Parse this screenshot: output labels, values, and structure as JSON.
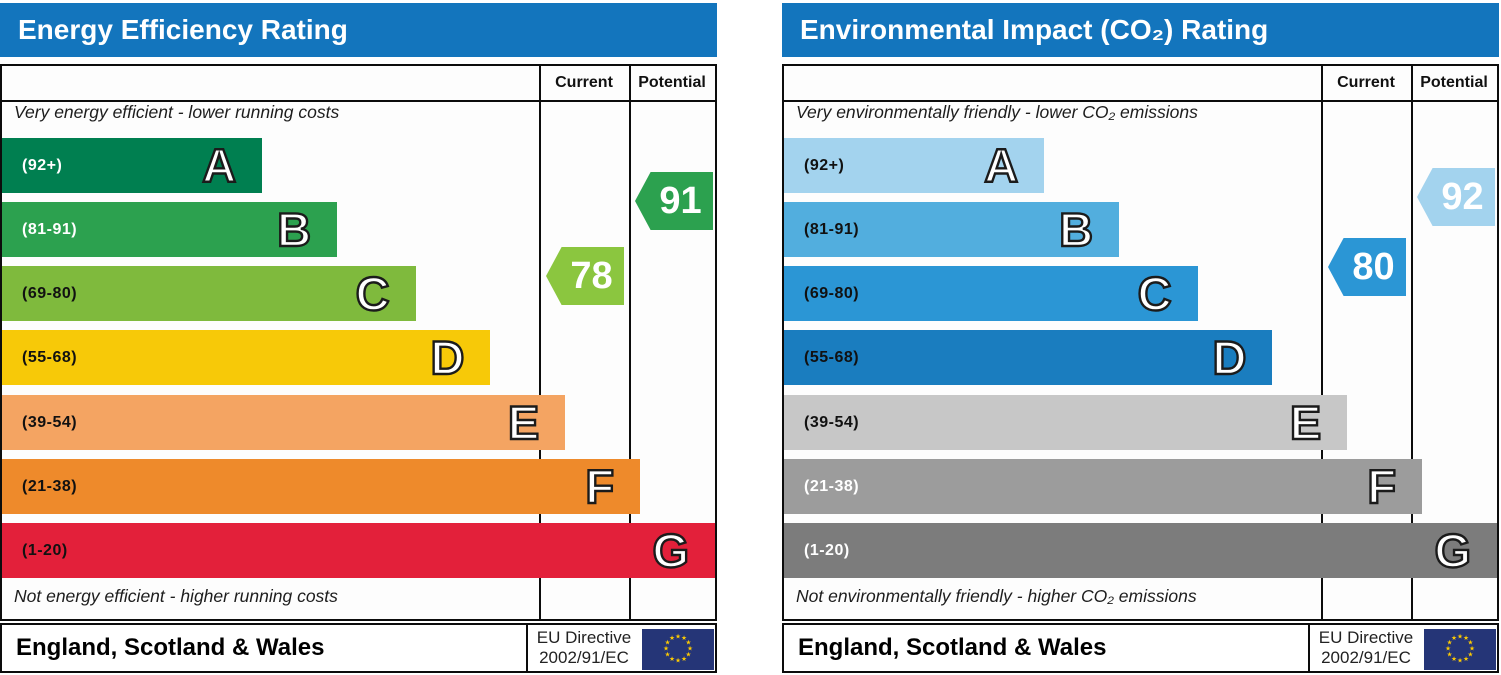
{
  "accent_colors": {
    "header_blue": "#1375bd",
    "border": "#0c0c0c",
    "eu_flag_blue": "#253577",
    "eu_star_yellow": "#ffcc00"
  },
  "panels": [
    {
      "title": "Energy Efficiency Rating",
      "columns": {
        "current": "Current",
        "potential": "Potential"
      },
      "caption_top": "Very energy efficient - lower running costs",
      "caption_bottom": "Not energy efficient - higher running costs",
      "bands": [
        {
          "letter": "A",
          "range": "(92+)",
          "color": "#007f50",
          "text_color": "#ffffff",
          "width_pct": 36.5
        },
        {
          "letter": "B",
          "range": "(81-91)",
          "color": "#2ca14f",
          "text_color": "#ffffff",
          "width_pct": 47
        },
        {
          "letter": "C",
          "range": "(69-80)",
          "color": "#7fba3d",
          "text_color": "#111111",
          "width_pct": 58
        },
        {
          "letter": "D",
          "range": "(55-68)",
          "color": "#f7c908",
          "text_color": "#111111",
          "width_pct": 68.5
        },
        {
          "letter": "E",
          "range": "(39-54)",
          "color": "#f4a462",
          "text_color": "#111111",
          "width_pct": 79
        },
        {
          "letter": "F",
          "range": "(21-38)",
          "color": "#ee8a2b",
          "text_color": "#111111",
          "width_pct": 89.5
        },
        {
          "letter": "G",
          "range": "(1-20)",
          "color": "#e3203a",
          "text_color": "#111111",
          "width_pct": 100
        }
      ],
      "current": {
        "value": "78",
        "band": "C",
        "color": "#8bc63f"
      },
      "potential": {
        "value": "91",
        "band": "B",
        "color": "#2ca14f"
      },
      "footer": {
        "region": "England, Scotland & Wales",
        "directive_line1": "EU Directive",
        "directive_line2": "2002/91/EC"
      }
    },
    {
      "title": "Environmental Impact (CO₂) Rating",
      "columns": {
        "current": "Current",
        "potential": "Potential"
      },
      "caption_top": "Very environmentally friendly - lower CO₂ emissions",
      "caption_bottom": "Not environmentally friendly - higher CO₂ emissions",
      "bands": [
        {
          "letter": "A",
          "range": "(92+)",
          "color": "#a3d3ee",
          "text_color": "#111111",
          "width_pct": 36.5
        },
        {
          "letter": "B",
          "range": "(81-91)",
          "color": "#52aede",
          "text_color": "#111111",
          "width_pct": 47
        },
        {
          "letter": "C",
          "range": "(69-80)",
          "color": "#2b96d5",
          "text_color": "#111111",
          "width_pct": 58
        },
        {
          "letter": "D",
          "range": "(55-68)",
          "color": "#1a7dbf",
          "text_color": "#111111",
          "width_pct": 68.5
        },
        {
          "letter": "E",
          "range": "(39-54)",
          "color": "#c7c7c7",
          "text_color": "#111111",
          "width_pct": 79
        },
        {
          "letter": "F",
          "range": "(21-38)",
          "color": "#9c9c9c",
          "text_color": "#ffffff",
          "width_pct": 89.5
        },
        {
          "letter": "G",
          "range": "(1-20)",
          "color": "#7c7c7c",
          "text_color": "#ffffff",
          "width_pct": 100
        }
      ],
      "current": {
        "value": "80",
        "band": "C",
        "color": "#2b96d5"
      },
      "potential": {
        "value": "92",
        "band": "A",
        "color": "#a3d3ee"
      },
      "footer": {
        "region": "England, Scotland & Wales",
        "directive_line1": "EU Directive",
        "directive_line2": "2002/91/EC"
      }
    }
  ],
  "chart_data": [
    {
      "type": "bar",
      "title": "Energy Efficiency Rating",
      "categories": [
        "A",
        "B",
        "C",
        "D",
        "E",
        "F",
        "G"
      ],
      "band_ranges": [
        "92+",
        "81-91",
        "69-80",
        "55-68",
        "39-54",
        "21-38",
        "1-20"
      ],
      "bar_lengths_pct": [
        36.5,
        47,
        58,
        68.5,
        79,
        89.5,
        100
      ],
      "current": 78,
      "current_band": "C",
      "potential": 91,
      "potential_band": "B",
      "caption_top": "Very energy efficient - lower running costs",
      "caption_bottom": "Not energy efficient - higher running costs",
      "region": "England, Scotland & Wales",
      "directive": "EU Directive 2002/91/EC"
    },
    {
      "type": "bar",
      "title": "Environmental Impact (CO₂) Rating",
      "categories": [
        "A",
        "B",
        "C",
        "D",
        "E",
        "F",
        "G"
      ],
      "band_ranges": [
        "92+",
        "81-91",
        "69-80",
        "55-68",
        "39-54",
        "21-38",
        "1-20"
      ],
      "bar_lengths_pct": [
        36.5,
        47,
        58,
        68.5,
        79,
        89.5,
        100
      ],
      "current": 80,
      "current_band": "C",
      "potential": 92,
      "potential_band": "A",
      "caption_top": "Very environmentally friendly - lower CO₂ emissions",
      "caption_bottom": "Not environmentally friendly - higher CO₂ emissions",
      "region": "England, Scotland & Wales",
      "directive": "EU Directive 2002/91/EC"
    }
  ]
}
